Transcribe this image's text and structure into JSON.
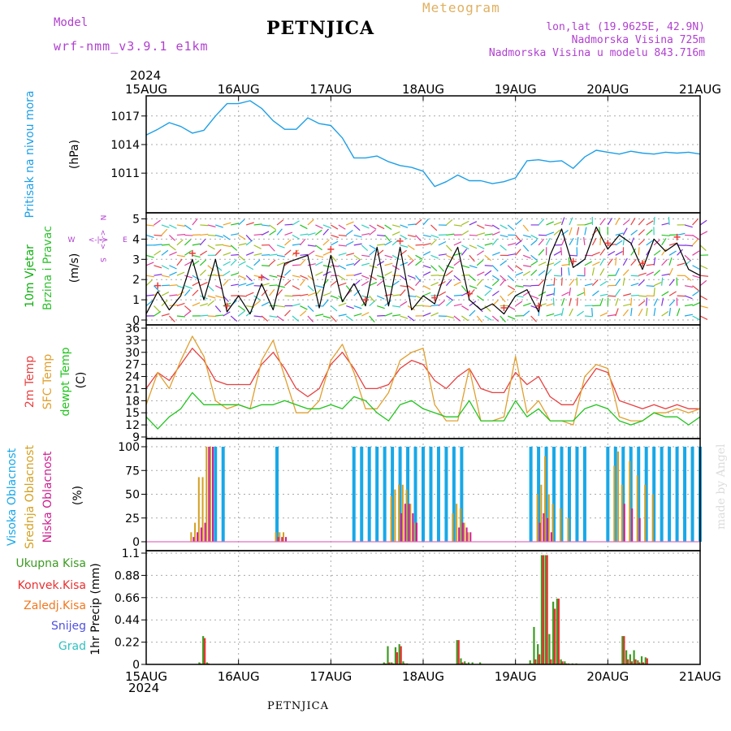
{
  "header": {
    "model_label": "Model",
    "model_name": "wrf-nmm_v3.9.1 e1km",
    "title": "PETNJICA",
    "meteogram": "Meteogram",
    "lonlat": "lon,lat (19.9625E, 42.9N)",
    "elevation": "Nadmorska Visina 725m",
    "model_elevation": "Nadmorska Visina u modelu 843.716m",
    "year_top": "2024",
    "year_bottom": "2024",
    "footer": "PETNJICA",
    "watermark": "made by Angel"
  },
  "colors": {
    "pressure": "#1e9fe6",
    "temp2m": "#e84040",
    "sfc": "#e0a030",
    "dewpt": "#22c41e",
    "cloud_high": "#18a8e8",
    "cloud_mid": "#d4a020",
    "cloud_low": "#cc2090",
    "precip_total": "#3d9a22",
    "precip_conv": "#e83030",
    "precip_frozen": "#f07820",
    "snow": "#5050e0",
    "hail": "#30c0c0",
    "wind_label_a": "#10b010",
    "wind_label_b": "#30c030",
    "compass": "#b040d0"
  },
  "chart_data": [
    {
      "type": "line",
      "name": "pressure",
      "labels": [
        "Pritisak na nivou mora",
        "(hPa)"
      ],
      "x_ticks": [
        "15AUG",
        "16AUG",
        "17AUG",
        "18AUG",
        "19AUG",
        "20AUG",
        "21AUG"
      ],
      "yticks": [
        1011,
        1014,
        1017
      ],
      "ylim": [
        1008.2,
        1019.2
      ],
      "x": [
        0,
        3,
        6,
        9,
        12,
        15,
        18,
        21,
        24,
        27,
        30,
        33,
        36,
        39,
        42,
        45,
        48,
        51,
        54,
        57,
        60,
        63,
        66,
        69,
        72,
        75,
        78,
        81,
        84,
        87,
        90,
        93,
        96,
        99,
        102,
        105,
        108,
        111,
        114,
        117,
        120,
        123,
        126,
        129,
        132,
        135,
        138,
        141,
        144
      ],
      "values": [
        1015,
        1015.6,
        1016.3,
        1015.9,
        1015.2,
        1015.5,
        1017,
        1018.3,
        1018.3,
        1018.6,
        1017.8,
        1016.5,
        1015.6,
        1015.6,
        1016.8,
        1016.2,
        1016,
        1014.7,
        1012.6,
        1012.6,
        1012.8,
        1012.2,
        1011.8,
        1011.6,
        1011.2,
        1009.6,
        1010.1,
        1010.8,
        1010.2,
        1010.2,
        1009.9,
        1010.1,
        1010.5,
        1012.3,
        1012.4,
        1012.2,
        1012.3,
        1011.5,
        1012.7,
        1013.4,
        1013.2,
        1013.0,
        1013.3,
        1013.1,
        1013.0,
        1013.2,
        1013.1,
        1013.2,
        1013.0
      ]
    },
    {
      "type": "line",
      "name": "wind",
      "labels": [
        "10m Vjetar",
        "Brzina i Pravac",
        "(m/s)"
      ],
      "compass": {
        "n": "N",
        "s": "S",
        "w": "W",
        "e": "E",
        "arrow": "<-|->"
      },
      "yticks": [
        0,
        1,
        2,
        3,
        4,
        5
      ],
      "ylim": [
        0,
        5.1
      ],
      "x": [
        0,
        3,
        6,
        9,
        12,
        15,
        18,
        21,
        24,
        27,
        30,
        33,
        36,
        39,
        42,
        45,
        48,
        51,
        54,
        57,
        60,
        63,
        66,
        69,
        72,
        75,
        78,
        81,
        84,
        87,
        90,
        93,
        96,
        99,
        102,
        105,
        108,
        111,
        114,
        117,
        120,
        123,
        126,
        129,
        132,
        135,
        138,
        141,
        144
      ],
      "values": [
        0.3,
        1.4,
        0.5,
        1.2,
        3.0,
        1.0,
        3.0,
        0.4,
        1.2,
        0.3,
        1.8,
        0.5,
        2.8,
        3.0,
        3.2,
        0.6,
        3.2,
        0.9,
        1.8,
        0.7,
        3.6,
        0.7,
        3.6,
        0.5,
        1.2,
        0.8,
        2.5,
        3.6,
        1.0,
        0.5,
        0.8,
        0.3,
        1.2,
        1.5,
        0.4,
        3.2,
        4.5,
        2.6,
        3.0,
        4.6,
        3.5,
        4.2,
        3.8,
        2.5,
        4.0,
        3.4,
        3.8,
        2.5,
        2.2
      ]
    },
    {
      "type": "line",
      "name": "temperature",
      "labels": [
        "2m Temp",
        "SFC Temp",
        "dewpt Temp",
        "(C)"
      ],
      "yticks": [
        9,
        12,
        15,
        18,
        21,
        24,
        27,
        30,
        33,
        36
      ],
      "ylim": [
        9,
        36
      ],
      "x": [
        0,
        3,
        6,
        9,
        12,
        15,
        18,
        21,
        24,
        27,
        30,
        33,
        36,
        39,
        42,
        45,
        48,
        51,
        54,
        57,
        60,
        63,
        66,
        69,
        72,
        75,
        78,
        81,
        84,
        87,
        90,
        93,
        96,
        99,
        102,
        105,
        108,
        111,
        114,
        117,
        120,
        123,
        126,
        129,
        132,
        135,
        138,
        141,
        144
      ],
      "series": [
        {
          "name": "2m Temp",
          "values": [
            21,
            25,
            23,
            27,
            31,
            28,
            23,
            22,
            22,
            22,
            27,
            30,
            26,
            21,
            19,
            21,
            27,
            30,
            26,
            21,
            21,
            22,
            26,
            28,
            27,
            23,
            21,
            24,
            26,
            21,
            20,
            20,
            25,
            22,
            24,
            19,
            17,
            17,
            22,
            26,
            25,
            18,
            17,
            16,
            17,
            16,
            17,
            16,
            16
          ]
        },
        {
          "name": "SFC Temp",
          "values": [
            17,
            25,
            21,
            28,
            34,
            29,
            18,
            16,
            17,
            16,
            28,
            33,
            24,
            15,
            15,
            18,
            28,
            32,
            25,
            16,
            16,
            20,
            28,
            30,
            31,
            17,
            13,
            13,
            26,
            13,
            13,
            14,
            29,
            15,
            18,
            13,
            13,
            12,
            24,
            27,
            26,
            14,
            13,
            13,
            15,
            15,
            16,
            15,
            16
          ]
        },
        {
          "name": "dewpt Temp",
          "values": [
            14,
            11,
            14,
            16,
            20,
            17,
            17,
            17,
            17,
            16,
            17,
            17,
            18,
            17,
            16,
            16,
            17,
            16,
            19,
            18,
            15,
            13,
            17,
            18,
            16,
            15,
            14,
            14,
            18,
            13,
            13,
            13,
            18,
            14,
            16,
            13,
            13,
            13,
            16,
            17,
            16,
            13,
            12,
            13,
            15,
            14,
            14,
            12,
            14
          ]
        }
      ]
    },
    {
      "type": "bar",
      "name": "cloud",
      "labels": [
        "Visoka Oblacnost",
        "Srednja Oblacnost",
        "Niska Oblacnost",
        "(%)"
      ],
      "yticks": [
        0,
        25,
        50,
        75,
        100
      ],
      "ylim": [
        0,
        100
      ],
      "series": [
        {
          "name": "Visoka Oblacnost",
          "x": [
            14,
            16,
            18,
            20,
            34,
            54,
            56,
            58,
            60,
            62,
            64,
            66,
            68,
            70,
            72,
            74,
            76,
            78,
            80,
            82,
            84,
            86,
            88,
            90,
            92,
            94,
            96,
            98,
            100,
            102,
            104,
            106,
            108,
            110,
            112,
            114,
            116,
            118,
            120,
            122,
            124,
            126,
            128,
            130,
            132,
            134,
            136,
            138,
            140,
            142,
            144
          ],
          "values": [
            0,
            0,
            100,
            100,
            100,
            100,
            100,
            100,
            100,
            100,
            100,
            100,
            100,
            100,
            100,
            100,
            100,
            100,
            100,
            100,
            0,
            0,
            0,
            0,
            0,
            0,
            0,
            0,
            100,
            100,
            100,
            100,
            100,
            100,
            100,
            100,
            0,
            0,
            100,
            100,
            100,
            100,
            100,
            100,
            100,
            100,
            100,
            100,
            100,
            100,
            100
          ]
        },
        {
          "name": "Srednja Oblacnost",
          "x": [
            12,
            13,
            14,
            15,
            16,
            17,
            34,
            35,
            36,
            64,
            65,
            66,
            67,
            68,
            69,
            70,
            80,
            81,
            82,
            83,
            84,
            102,
            103,
            104,
            105,
            106,
            108,
            110,
            122,
            123,
            124,
            126,
            128,
            130,
            132
          ],
          "values": [
            10,
            20,
            68,
            68,
            100,
            100,
            10,
            10,
            10,
            48,
            55,
            60,
            60,
            55,
            40,
            20,
            30,
            40,
            35,
            20,
            10,
            50,
            60,
            90,
            50,
            40,
            35,
            25,
            80,
            95,
            60,
            85,
            70,
            60,
            50
          ]
        },
        {
          "name": "Niska Oblacnost",
          "x": [
            12,
            13,
            14,
            15,
            16,
            17,
            34,
            35,
            36,
            66,
            67,
            68,
            69,
            70,
            81,
            82,
            83,
            84,
            102,
            103,
            104,
            105,
            124,
            126,
            128
          ],
          "values": [
            5,
            10,
            15,
            20,
            100,
            100,
            5,
            5,
            5,
            30,
            40,
            40,
            30,
            20,
            15,
            20,
            15,
            10,
            20,
            30,
            25,
            10,
            40,
            35,
            25
          ]
        }
      ]
    },
    {
      "type": "bar",
      "name": "precip",
      "labels": [
        "Ukupna Kisa",
        "Konvek.Kisa",
        "Zaledj.Kisa",
        "Snijeg",
        "Grad",
        "1hr Precip (mm)"
      ],
      "yticks": [
        0,
        0.22,
        0.44,
        0.66,
        0.88,
        1.1
      ],
      "ylim": [
        0,
        1.1
      ],
      "x": [
        14,
        15,
        16,
        62,
        63,
        64,
        65,
        66,
        67,
        68,
        81,
        82,
        83,
        84,
        85,
        87,
        100,
        101,
        102,
        103,
        104,
        105,
        106,
        107,
        108,
        109,
        110,
        111,
        112,
        124,
        125,
        126,
        127,
        128,
        129,
        130
      ],
      "series": [
        {
          "name": "Ukupna Kisa",
          "values": [
            0.02,
            0.28,
            0.02,
            0.02,
            0.18,
            0.02,
            0.17,
            0.2,
            0.03,
            0.01,
            0.24,
            0.06,
            0.03,
            0.02,
            0.02,
            0.02,
            0.04,
            0.37,
            0.2,
            1.08,
            1.08,
            0.3,
            0.62,
            0.65,
            0.05,
            0.03,
            0.01,
            0.01,
            0.01,
            0.28,
            0.14,
            0.1,
            0.14,
            0.04,
            0.08,
            0.07
          ]
        },
        {
          "name": "Konvek.Kisa",
          "values": [
            0.01,
            0.26,
            0.01,
            0.01,
            0.02,
            0.01,
            0.12,
            0.18,
            0.01,
            0.0,
            0.24,
            0.02,
            0.01,
            0.0,
            0.0,
            0.0,
            0.01,
            0.05,
            0.1,
            1.08,
            1.08,
            0.05,
            0.55,
            0.65,
            0.03,
            0.01,
            0.0,
            0.0,
            0.0,
            0.28,
            0.05,
            0.03,
            0.05,
            0.02,
            0.02,
            0.06
          ]
        }
      ]
    }
  ]
}
